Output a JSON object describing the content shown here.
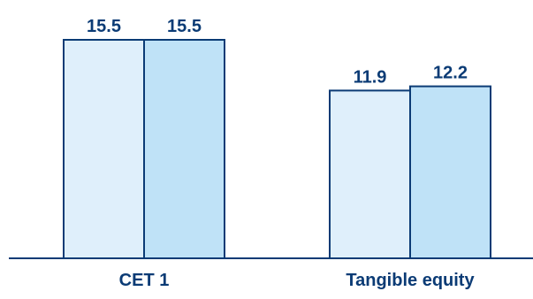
{
  "chart_data": {
    "type": "bar",
    "categories": [
      "CET 1",
      "Tangible equity"
    ],
    "series": [
      {
        "values": [
          15.5,
          11.9
        ],
        "color": "#dfeffb"
      },
      {
        "values": [
          15.5,
          12.2
        ],
        "color": "#bfe2f7"
      }
    ],
    "data_labels": [
      [
        "15.5",
        "11.9"
      ],
      [
        "15.5",
        "12.2"
      ]
    ],
    "ylim": [
      0,
      15.5
    ],
    "bar_stroke_color": "#0b3b75",
    "text_color": "#0b3b75",
    "grid": false,
    "legend": "none"
  }
}
